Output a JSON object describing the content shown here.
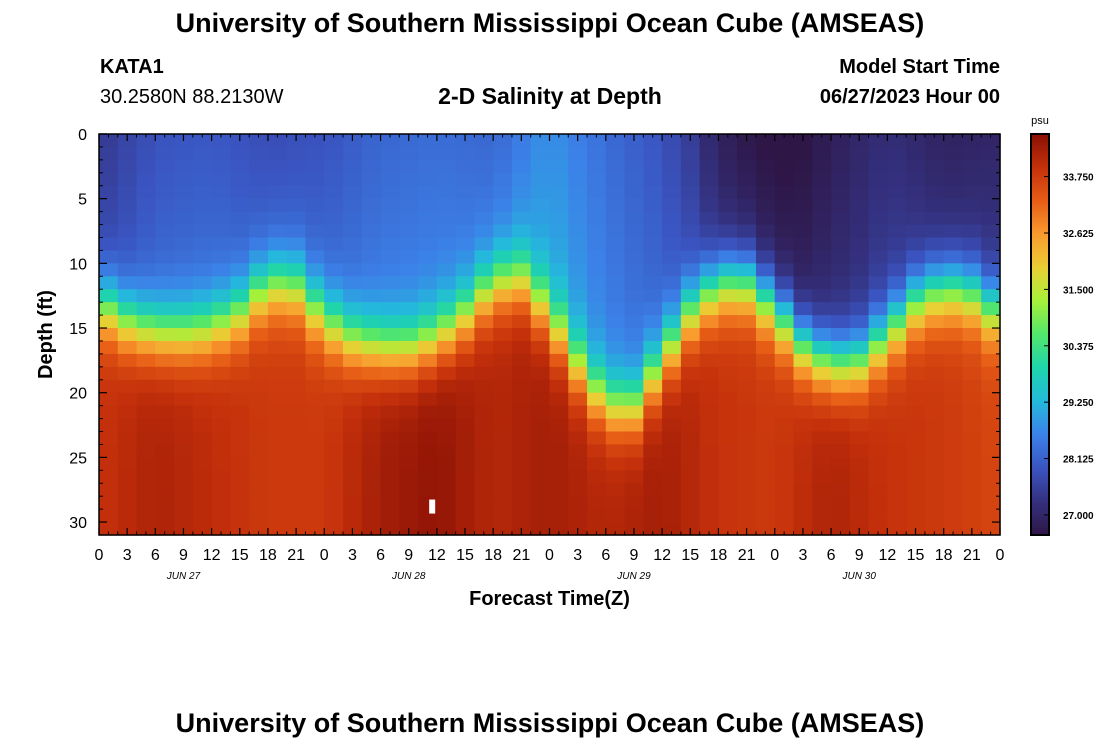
{
  "header": {
    "title_top": "University of Southern Mississippi Ocean Cube (AMSEAS)",
    "title_bottom": "University of Southern Mississippi Ocean Cube (AMSEAS)",
    "station": "KATA1",
    "coords": "30.2580N  88.2130W",
    "subtitle": "2-D Salinity at Depth",
    "model_label": "Model Start Time",
    "model_time": "06/27/2023 Hour 00"
  },
  "chart_data": {
    "type": "heatmap",
    "title": "2-D Salinity at Depth",
    "xlabel": "Forecast Time(Z)",
    "ylabel": "Depth (ft)",
    "x_ticks": [
      "0",
      "3",
      "6",
      "9",
      "12",
      "15",
      "18",
      "21",
      "0",
      "3",
      "6",
      "9",
      "12",
      "15",
      "18",
      "21",
      "0",
      "3",
      "6",
      "9",
      "12",
      "15",
      "18",
      "21",
      "0",
      "3",
      "6",
      "9",
      "12",
      "15",
      "18",
      "21",
      "0"
    ],
    "day_labels": [
      "JUN 27",
      "JUN 28",
      "JUN 29",
      "JUN 30"
    ],
    "x_range_hours": [
      0,
      96
    ],
    "y_ticks": [
      0,
      5,
      10,
      15,
      20,
      25,
      30
    ],
    "y_range_ft": [
      0,
      31
    ],
    "y_inverted": true,
    "colorbar": {
      "unit": "psu",
      "ticks": [
        "33.750",
        "32.625",
        "31.500",
        "30.375",
        "29.250",
        "28.125",
        "27.000"
      ],
      "range": [
        26.6,
        34.6
      ],
      "colors": [
        "#2e1646",
        "#34317f",
        "#3a54c0",
        "#3b82e8",
        "#24b9dc",
        "#1ed4ab",
        "#52e66c",
        "#a6f03a",
        "#eacf35",
        "#f89b2e",
        "#e75d16",
        "#c4300b",
        "#891005"
      ]
    },
    "interface_depth_ft": [
      {
        "t": 0,
        "d": 13.0
      },
      {
        "t": 3,
        "d": 14.5
      },
      {
        "t": 6,
        "d": 15.3
      },
      {
        "t": 9,
        "d": 15.3
      },
      {
        "t": 12,
        "d": 15.0
      },
      {
        "t": 15,
        "d": 13.8
      },
      {
        "t": 18,
        "d": 11.5
      },
      {
        "t": 21,
        "d": 11.8
      },
      {
        "t": 24,
        "d": 14.3
      },
      {
        "t": 27,
        "d": 15.8
      },
      {
        "t": 30,
        "d": 16.5
      },
      {
        "t": 33,
        "d": 16.5
      },
      {
        "t": 36,
        "d": 15.8
      },
      {
        "t": 39,
        "d": 14.0
      },
      {
        "t": 42,
        "d": 11.5
      },
      {
        "t": 45,
        "d": 11.2
      },
      {
        "t": 48,
        "d": 14.0
      },
      {
        "t": 51,
        "d": 17.8
      },
      {
        "t": 54,
        "d": 21.0
      },
      {
        "t": 57,
        "d": 21.0
      },
      {
        "t": 60,
        "d": 17.5
      },
      {
        "t": 63,
        "d": 13.8
      },
      {
        "t": 66,
        "d": 11.5
      },
      {
        "t": 69,
        "d": 11.5
      },
      {
        "t": 72,
        "d": 13.5
      },
      {
        "t": 75,
        "d": 16.3
      },
      {
        "t": 78,
        "d": 17.8
      },
      {
        "t": 81,
        "d": 17.5
      },
      {
        "t": 84,
        "d": 15.5
      },
      {
        "t": 87,
        "d": 13.0
      },
      {
        "t": 90,
        "d": 11.8
      },
      {
        "t": 93,
        "d": 12.3
      },
      {
        "t": 96,
        "d": 14.0
      }
    ],
    "surface_salinity_psu": [
      {
        "t": 0,
        "v": 27.8
      },
      {
        "t": 6,
        "v": 28.3
      },
      {
        "t": 12,
        "v": 28.4
      },
      {
        "t": 18,
        "v": 28.2
      },
      {
        "t": 24,
        "v": 28.3
      },
      {
        "t": 30,
        "v": 28.6
      },
      {
        "t": 36,
        "v": 28.7
      },
      {
        "t": 42,
        "v": 28.6
      },
      {
        "t": 48,
        "v": 29.2
      },
      {
        "t": 54,
        "v": 28.7
      },
      {
        "t": 60,
        "v": 28.3
      },
      {
        "t": 63,
        "v": 27.9
      },
      {
        "t": 66,
        "v": 27.3
      },
      {
        "t": 70,
        "v": 27.0
      },
      {
        "t": 74,
        "v": 26.9
      },
      {
        "t": 78,
        "v": 27.2
      },
      {
        "t": 84,
        "v": 27.6
      },
      {
        "t": 90,
        "v": 27.3
      },
      {
        "t": 96,
        "v": 27.4
      }
    ],
    "bottom_salinity_psu": [
      {
        "t": 0,
        "v": 33.9
      },
      {
        "t": 6,
        "v": 34.2
      },
      {
        "t": 12,
        "v": 34.0
      },
      {
        "t": 18,
        "v": 33.8
      },
      {
        "t": 24,
        "v": 33.8
      },
      {
        "t": 30,
        "v": 34.3
      },
      {
        "t": 36,
        "v": 34.5
      },
      {
        "t": 42,
        "v": 34.1
      },
      {
        "t": 48,
        "v": 34.3
      },
      {
        "t": 54,
        "v": 34.1
      },
      {
        "t": 60,
        "v": 34.3
      },
      {
        "t": 66,
        "v": 33.9
      },
      {
        "t": 72,
        "v": 33.8
      },
      {
        "t": 78,
        "v": 34.2
      },
      {
        "t": 84,
        "v": 33.9
      },
      {
        "t": 90,
        "v": 33.8
      },
      {
        "t": 96,
        "v": 33.6
      }
    ],
    "marker": {
      "t": 35.5,
      "d": 28.8
    }
  }
}
